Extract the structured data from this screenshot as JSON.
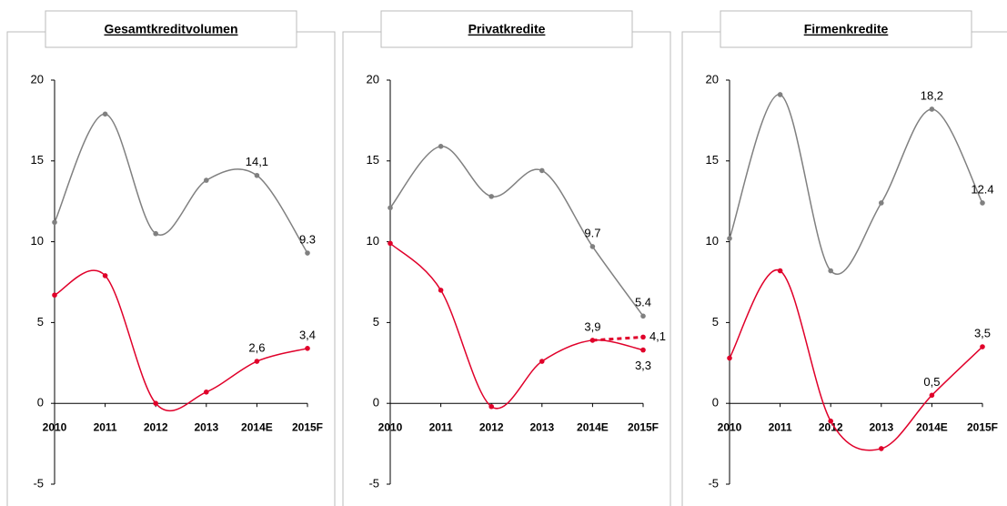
{
  "chart_data": [
    {
      "type": "line",
      "title": "Gesamtkreditvolumen",
      "categories": [
        "2010",
        "2011",
        "2012",
        "2013",
        "2014E",
        "2015F"
      ],
      "series": [
        {
          "color": "#808080",
          "values": [
            11.2,
            17.9,
            10.5,
            13.8,
            14.1,
            9.3
          ],
          "value_labels": [
            null,
            null,
            null,
            null,
            "14,1",
            "9.3"
          ]
        },
        {
          "color": "#e0002a",
          "values": [
            6.7,
            7.9,
            0,
            0.7,
            2.6,
            3.4
          ],
          "value_labels": [
            null,
            null,
            null,
            null,
            "2,6",
            "3,4"
          ]
        }
      ],
      "ylim": [
        -5,
        20
      ],
      "yticks": [
        -5,
        0,
        5,
        10,
        15,
        20
      ]
    },
    {
      "type": "line",
      "title": "Privatkredite",
      "categories": [
        "2010",
        "2011",
        "2012",
        "2013",
        "2014E",
        "2015F"
      ],
      "series": [
        {
          "color": "#808080",
          "values": [
            12.1,
            15.9,
            12.8,
            14.4,
            9.7,
            5.4
          ],
          "value_labels": [
            null,
            null,
            null,
            null,
            "9.7",
            "5.4"
          ]
        },
        {
          "color": "#e0002a",
          "values": [
            9.9,
            7.0,
            -0.2,
            2.6,
            3.9,
            3.3
          ],
          "value_labels": [
            null,
            null,
            null,
            null,
            "3,9",
            "3,3"
          ]
        },
        {
          "color": "#e0002a",
          "dashed": true,
          "values": [
            null,
            null,
            null,
            null,
            3.9,
            4.1
          ],
          "value_labels": [
            null,
            null,
            null,
            null,
            null,
            "4,1"
          ]
        }
      ],
      "ylim": [
        -5,
        20
      ],
      "yticks": [
        -5,
        0,
        5,
        10,
        15,
        20
      ]
    },
    {
      "type": "line",
      "title": "Firmenkredite",
      "categories": [
        "2010",
        "2011",
        "2012",
        "2013",
        "2014E",
        "2015F"
      ],
      "series": [
        {
          "color": "#808080",
          "values": [
            10.2,
            19.1,
            8.2,
            12.4,
            18.2,
            12.4
          ],
          "value_labels": [
            null,
            null,
            null,
            null,
            "18,2",
            "12.4"
          ]
        },
        {
          "color": "#e0002a",
          "values": [
            2.8,
            8.2,
            -1.1,
            -2.8,
            0.5,
            3.5
          ],
          "value_labels": [
            null,
            null,
            null,
            null,
            "0,5",
            "3,5"
          ]
        }
      ],
      "ylim": [
        -5,
        20
      ],
      "yticks": [
        -5,
        0,
        5,
        10,
        15,
        20
      ]
    }
  ]
}
